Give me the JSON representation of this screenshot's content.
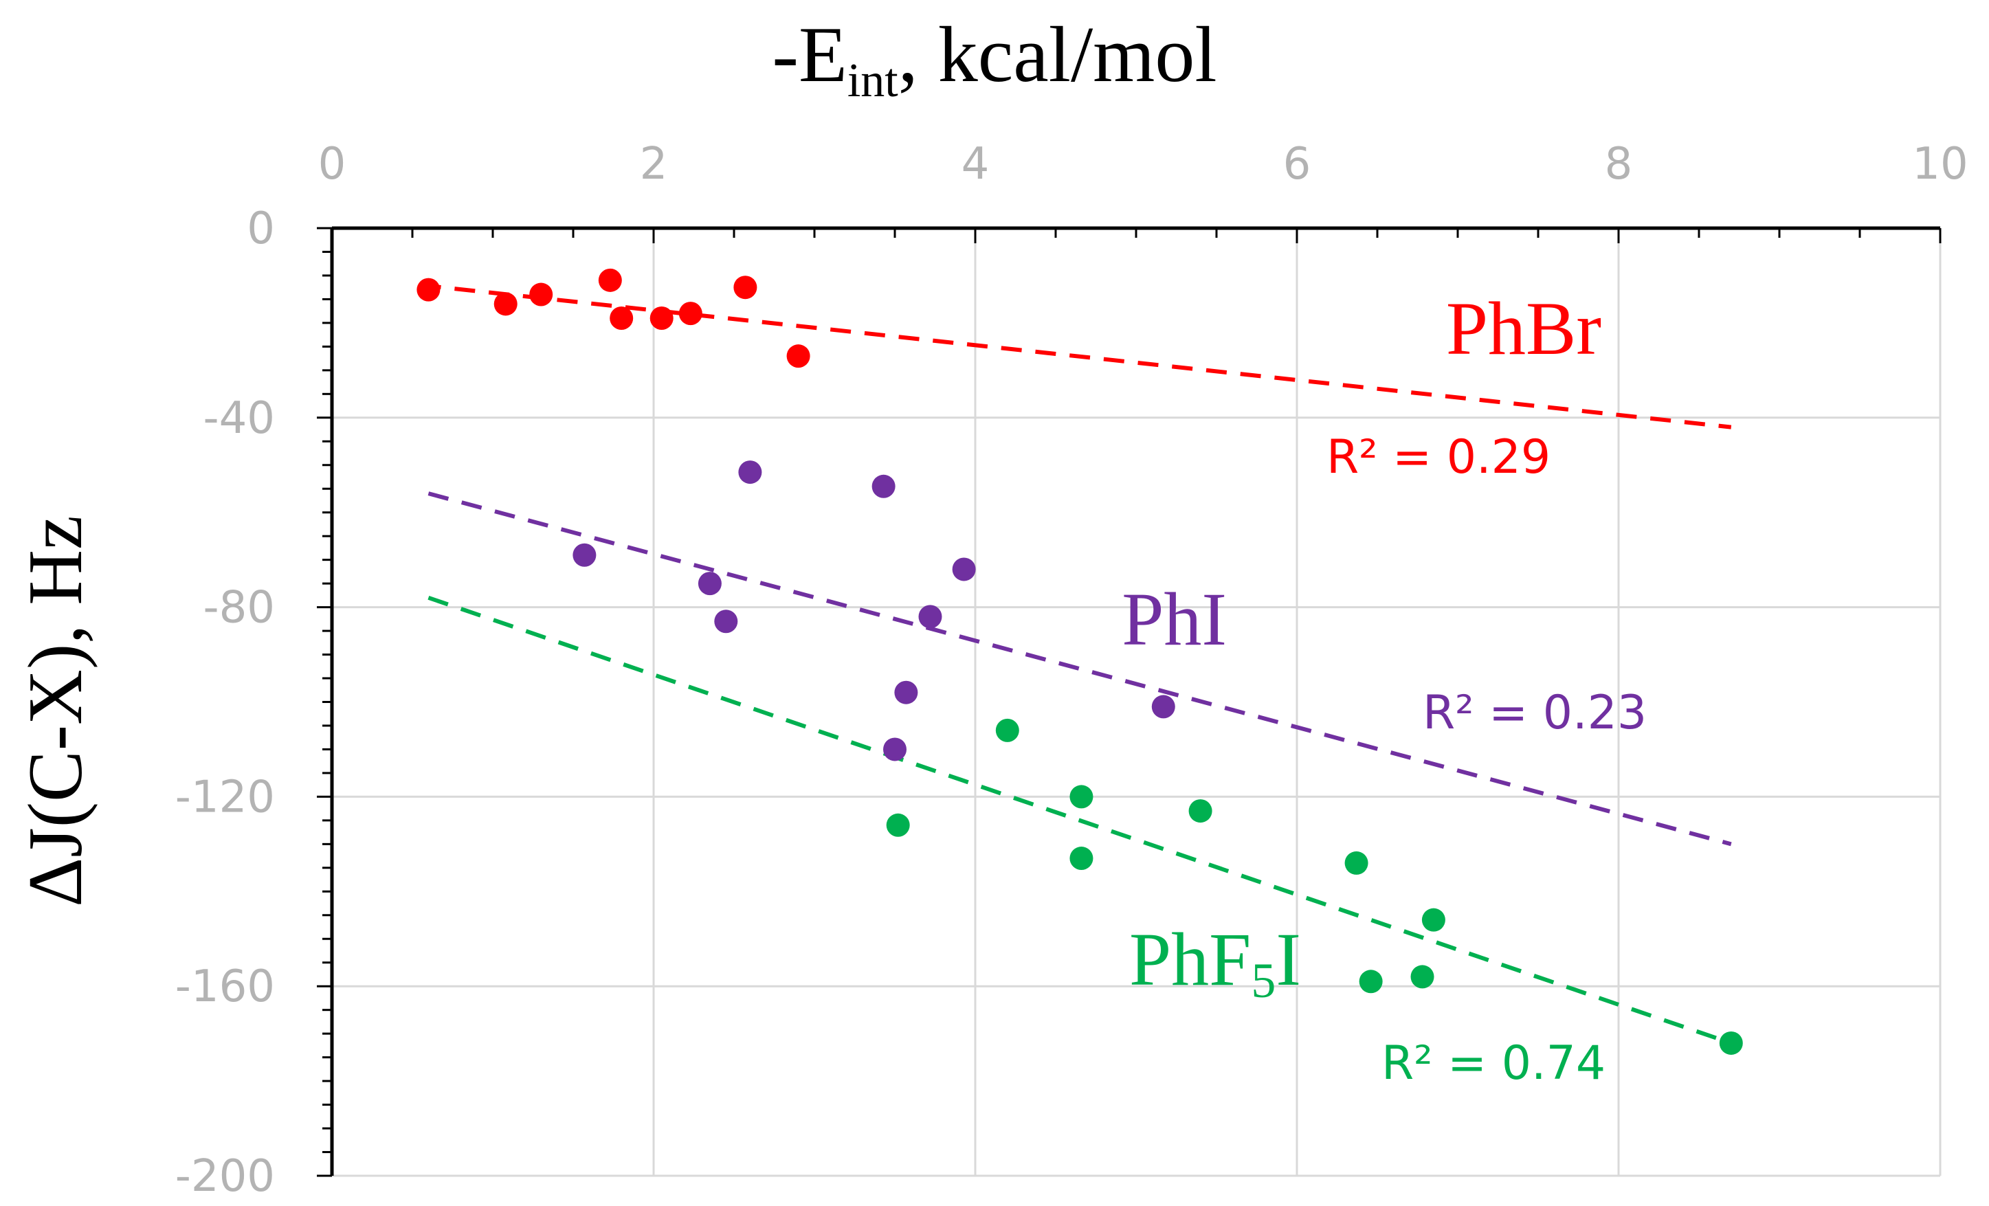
{
  "chart_data": {
    "type": "scatter",
    "title": "",
    "xlabel": {
      "base": "-E",
      "sub": "int",
      "rest": ", kcal/mol"
    },
    "ylabel": "ΔJ(C-X), Hz",
    "xlim": [
      0,
      10
    ],
    "ylim": [
      -200,
      0
    ],
    "x_ticks": [
      0,
      2,
      4,
      6,
      8,
      10
    ],
    "y_ticks": [
      0,
      -40,
      -80,
      -120,
      -160,
      -200
    ],
    "x_tick_labels": [
      "0",
      "2",
      "4",
      "6",
      "8",
      "10"
    ],
    "y_tick_labels": [
      "0",
      "-40",
      "-80",
      "-120",
      "-160",
      "-200"
    ],
    "x_axis_position": "top",
    "grid": true,
    "series": [
      {
        "name": "PhBr",
        "label": {
          "base": "PhBr",
          "sub": "",
          "rest": ""
        },
        "color": "#ff0000",
        "points": [
          [
            0.6,
            -13
          ],
          [
            1.08,
            -16
          ],
          [
            1.3,
            -14
          ],
          [
            1.73,
            -11
          ],
          [
            1.8,
            -19
          ],
          [
            2.05,
            -19
          ],
          [
            2.23,
            -18
          ],
          [
            2.57,
            -12.5
          ],
          [
            2.9,
            -27
          ]
        ],
        "trendline": {
          "x": [
            0.55,
            8.7
          ],
          "y": [
            -12,
            -42
          ]
        },
        "r2_text": "R² = 0.29"
      },
      {
        "name": "PhI",
        "label": {
          "base": "PhI",
          "sub": "",
          "rest": ""
        },
        "color": "#7030a0",
        "points": [
          [
            1.57,
            -69
          ],
          [
            2.35,
            -75
          ],
          [
            2.45,
            -83
          ],
          [
            2.6,
            -51.5
          ],
          [
            3.43,
            -54.5
          ],
          [
            3.5,
            -110
          ],
          [
            3.57,
            -98
          ],
          [
            3.72,
            -82
          ],
          [
            3.93,
            -72
          ],
          [
            5.17,
            -101
          ]
        ],
        "trendline": {
          "x": [
            0.6,
            8.7
          ],
          "y": [
            -56,
            -130
          ]
        },
        "r2_text": "R² = 0.23"
      },
      {
        "name": "PhF5I",
        "label": {
          "base": "PhF",
          "sub": "5",
          "rest": "I"
        },
        "color": "#00b050",
        "points": [
          [
            3.52,
            -126
          ],
          [
            4.2,
            -106
          ],
          [
            4.66,
            -120
          ],
          [
            4.66,
            -133
          ],
          [
            5.4,
            -123
          ],
          [
            6.37,
            -134
          ],
          [
            6.46,
            -159
          ],
          [
            6.78,
            -158
          ],
          [
            6.85,
            -146
          ],
          [
            8.7,
            -172
          ]
        ],
        "trendline": {
          "x": [
            0.6,
            8.7
          ],
          "y": [
            -78,
            -172
          ]
        },
        "r2_text": "R² = 0.74"
      }
    ]
  }
}
